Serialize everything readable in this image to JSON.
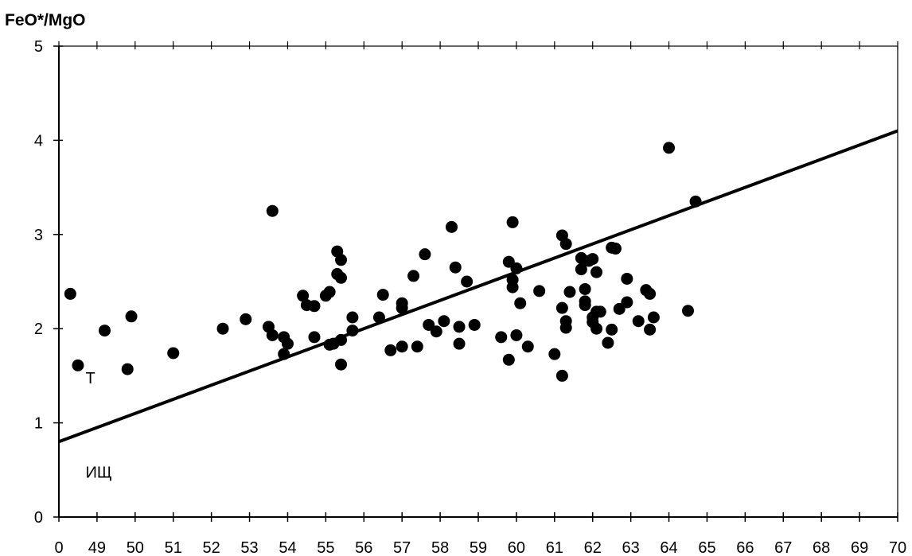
{
  "chart_data": {
    "type": "scatter",
    "ylabel": "FeO*/MgO",
    "xlabel": "",
    "x_tick_labels": [
      "0",
      "49",
      "50",
      "51",
      "52",
      "53",
      "54",
      "55",
      "56",
      "57",
      "58",
      "59",
      "60",
      "61",
      "62",
      "63",
      "64",
      "65",
      "66",
      "67",
      "68",
      "69",
      "70"
    ],
    "xlim": [
      48,
      70
    ],
    "ylim": [
      0,
      5
    ],
    "y_ticks": [
      0,
      1,
      2,
      3,
      4,
      5
    ],
    "grid": false,
    "legend": "none",
    "region_labels": {
      "upper": "Т",
      "lower": "ИЩ"
    },
    "divider_line": {
      "x": [
        48,
        70
      ],
      "y": [
        0.8,
        4.1
      ]
    },
    "points": [
      [
        48.3,
        2.37
      ],
      [
        48.5,
        1.61
      ],
      [
        49.2,
        1.98
      ],
      [
        49.9,
        2.13
      ],
      [
        49.8,
        1.57
      ],
      [
        51.0,
        1.74
      ],
      [
        52.3,
        2.0
      ],
      [
        52.9,
        2.1
      ],
      [
        53.5,
        2.02
      ],
      [
        53.6,
        1.93
      ],
      [
        53.6,
        3.25
      ],
      [
        53.9,
        1.91
      ],
      [
        53.9,
        1.73
      ],
      [
        54.0,
        1.84
      ],
      [
        54.4,
        2.35
      ],
      [
        54.5,
        2.25
      ],
      [
        54.7,
        1.91
      ],
      [
        54.7,
        2.24
      ],
      [
        55.0,
        2.35
      ],
      [
        55.1,
        2.39
      ],
      [
        55.1,
        1.83
      ],
      [
        55.2,
        1.84
      ],
      [
        55.3,
        2.58
      ],
      [
        55.3,
        2.82
      ],
      [
        55.4,
        1.88
      ],
      [
        55.4,
        2.73
      ],
      [
        55.4,
        2.54
      ],
      [
        55.4,
        1.62
      ],
      [
        55.7,
        2.12
      ],
      [
        55.7,
        1.98
      ],
      [
        56.4,
        2.12
      ],
      [
        56.5,
        2.36
      ],
      [
        56.7,
        1.77
      ],
      [
        57.0,
        2.27
      ],
      [
        57.0,
        2.22
      ],
      [
        57.0,
        1.81
      ],
      [
        57.3,
        2.56
      ],
      [
        57.4,
        1.81
      ],
      [
        57.6,
        2.79
      ],
      [
        57.7,
        2.04
      ],
      [
        57.9,
        1.97
      ],
      [
        58.1,
        2.08
      ],
      [
        58.3,
        3.08
      ],
      [
        58.4,
        2.65
      ],
      [
        58.5,
        2.02
      ],
      [
        58.5,
        1.84
      ],
      [
        58.7,
        2.5
      ],
      [
        58.9,
        2.04
      ],
      [
        59.6,
        1.91
      ],
      [
        59.8,
        1.67
      ],
      [
        59.8,
        2.71
      ],
      [
        59.9,
        2.44
      ],
      [
        59.9,
        2.52
      ],
      [
        59.9,
        3.13
      ],
      [
        60.0,
        2.64
      ],
      [
        60.0,
        1.93
      ],
      [
        60.1,
        2.27
      ],
      [
        60.3,
        1.81
      ],
      [
        60.6,
        2.4
      ],
      [
        61.0,
        1.73
      ],
      [
        61.2,
        1.5
      ],
      [
        61.2,
        2.99
      ],
      [
        61.2,
        2.22
      ],
      [
        61.3,
        2.9
      ],
      [
        61.3,
        2.08
      ],
      [
        61.3,
        2.01
      ],
      [
        61.4,
        2.39
      ],
      [
        61.7,
        2.63
      ],
      [
        61.7,
        2.75
      ],
      [
        61.8,
        2.42
      ],
      [
        61.8,
        2.29
      ],
      [
        61.8,
        2.25
      ],
      [
        61.9,
        2.72
      ],
      [
        62.0,
        2.74
      ],
      [
        62.0,
        2.12
      ],
      [
        62.0,
        2.07
      ],
      [
        62.1,
        2.18
      ],
      [
        62.1,
        2.0
      ],
      [
        62.1,
        2.6
      ],
      [
        62.2,
        2.18
      ],
      [
        62.4,
        1.85
      ],
      [
        62.5,
        1.99
      ],
      [
        62.5,
        2.86
      ],
      [
        62.6,
        2.85
      ],
      [
        62.7,
        2.21
      ],
      [
        62.9,
        2.28
      ],
      [
        62.9,
        2.53
      ],
      [
        63.2,
        2.08
      ],
      [
        63.4,
        2.41
      ],
      [
        63.5,
        1.99
      ],
      [
        63.5,
        2.37
      ],
      [
        63.6,
        2.12
      ],
      [
        64.0,
        3.92
      ],
      [
        64.5,
        2.19
      ],
      [
        64.7,
        3.35
      ]
    ]
  }
}
